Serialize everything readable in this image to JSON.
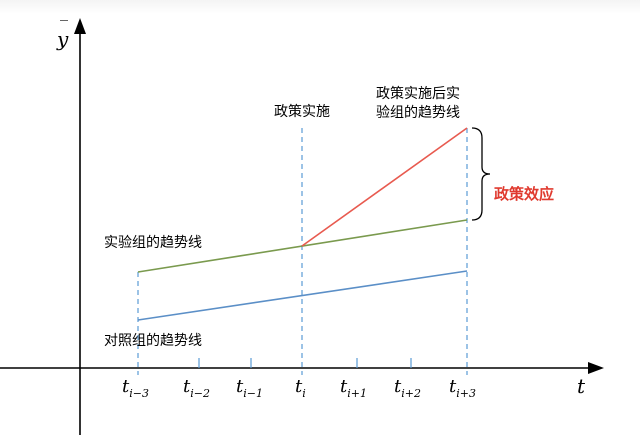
{
  "axes": {
    "y_label_base": "y",
    "y_label_bar": "‾",
    "x_label": "t"
  },
  "ticks": [
    {
      "base": "t",
      "sub": "i−3"
    },
    {
      "base": "t",
      "sub": "i−2"
    },
    {
      "base": "t",
      "sub": "i−1"
    },
    {
      "base": "t",
      "sub": "i"
    },
    {
      "base": "t",
      "sub": "i+1"
    },
    {
      "base": "t",
      "sub": "i+2"
    },
    {
      "base": "t",
      "sub": "i+3"
    }
  ],
  "annotations": {
    "policy_start": "政策实施",
    "post_policy_line1": "政策实施后实",
    "post_policy_line2": "验组的趋势线",
    "treatment_trend": "实验组的趋势线",
    "control_trend": "对照组的趋势线",
    "policy_effect": "政策效应"
  },
  "colors": {
    "treatment": "#7a9a4e",
    "control": "#5b8fc7",
    "post_policy": "#e85a4f",
    "effect_label": "#e03a2f",
    "dashed": "#5b9bd5",
    "axis": "#000000"
  }
}
